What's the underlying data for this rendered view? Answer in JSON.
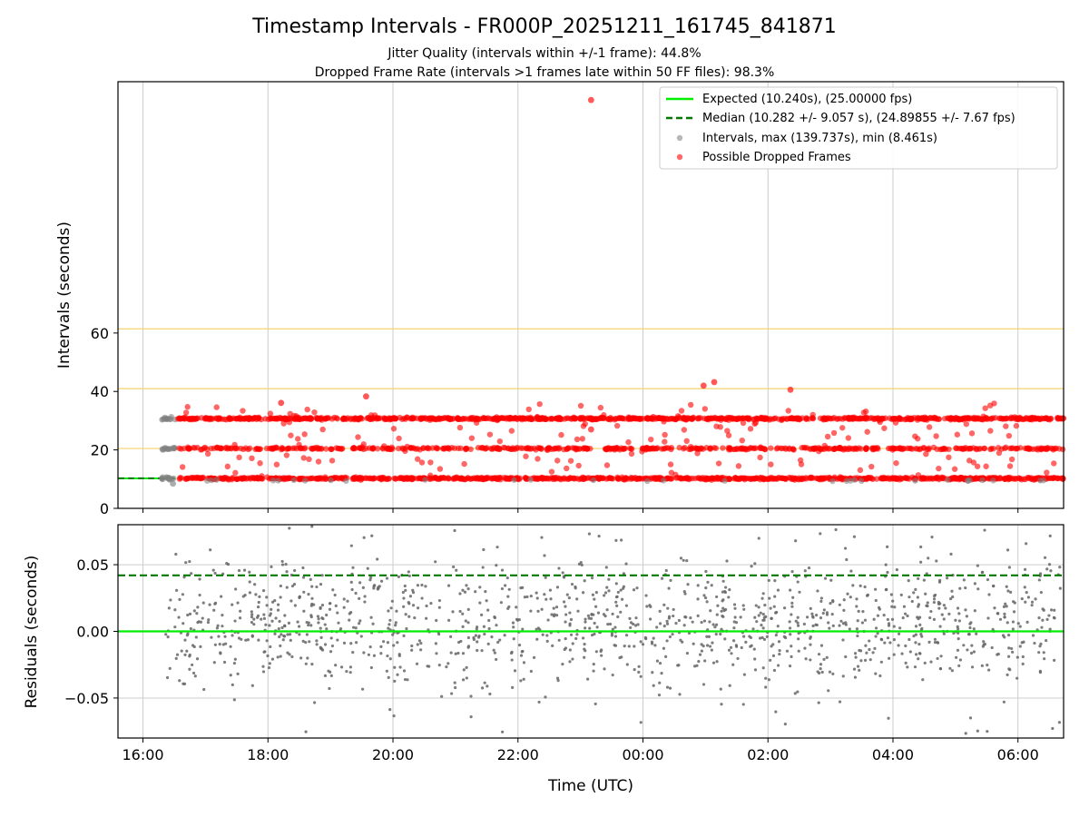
{
  "chart_data": {
    "type": "scatter",
    "title": "Timestamp Intervals - FR000P_20251211_161745_841871",
    "subtitle1": "Jitter Quality (intervals within +/-1 frame): 44.8%",
    "subtitle2": "Dropped Frame Rate (intervals >1 frames late within 50 FF files): 98.3%",
    "xlabel": "Time (UTC)",
    "x_range_hours": [
      15.6,
      30.73
    ],
    "x_ticks": [
      {
        "label": "16:00",
        "value": 16
      },
      {
        "label": "18:00",
        "value": 18
      },
      {
        "label": "20:00",
        "value": 20
      },
      {
        "label": "22:00",
        "value": 22
      },
      {
        "label": "00:00",
        "value": 24
      },
      {
        "label": "02:00",
        "value": 26
      },
      {
        "label": "04:00",
        "value": 28
      },
      {
        "label": "06:00",
        "value": 30
      }
    ],
    "top_panel": {
      "ylabel": "Intervals (seconds)",
      "ylim": [
        0,
        146
      ],
      "y_ticks": [
        {
          "label": "0",
          "value": 0
        },
        {
          "label": "20",
          "value": 20
        },
        {
          "label": "40",
          "value": 40
        },
        {
          "label": "60",
          "value": 60
        }
      ],
      "threshold_lines": [
        20.48,
        40.96,
        61.44
      ],
      "expected_interval": 10.24,
      "median_interval": 10.282,
      "band_levels": [
        10.24,
        20.48,
        30.72
      ],
      "normal_interval_start": 15.6,
      "normal_interval_end": 16.52,
      "notable_points": [
        {
          "x": 23.17,
          "y": 139.737,
          "kind": "dropped"
        },
        {
          "x": 25.14,
          "y": 43.2,
          "kind": "dropped"
        },
        {
          "x": 24.97,
          "y": 42.0,
          "kind": "dropped"
        },
        {
          "x": 26.36,
          "y": 40.6,
          "kind": "dropped"
        },
        {
          "x": 19.57,
          "y": 38.3,
          "kind": "dropped"
        },
        {
          "x": 18.21,
          "y": 36.1,
          "kind": "dropped"
        },
        {
          "x": 23.17,
          "y": 27.0,
          "kind": "dropped"
        },
        {
          "x": 16.48,
          "y": 8.461,
          "kind": "normal"
        }
      ]
    },
    "bottom_panel": {
      "ylabel": "Residuals (seconds)",
      "ylim": [
        -0.08,
        0.08
      ],
      "y_ticks": [
        {
          "label": "0.05",
          "value": 0.05
        },
        {
          "label": "0.00",
          "value": 0.0
        },
        {
          "label": "−0.05",
          "value": -0.05
        }
      ],
      "expected_residual": 0.0,
      "median_residual": 0.042
    },
    "legend": {
      "position": "top-right",
      "entries": [
        {
          "label": "Expected (10.240s), (25.00000 fps)",
          "style": "solid-line",
          "color": "#00ee00"
        },
        {
          "label": "Median (10.282 +/- 9.057 s), (24.89855 +/- 7.67 fps)",
          "style": "dashed-line",
          "color": "#007700"
        },
        {
          "label": "Intervals, max (139.737s), min (8.461s)",
          "style": "marker",
          "color": "#999999"
        },
        {
          "label": "Possible Dropped Frames",
          "style": "marker",
          "color": "#ff2a2a"
        }
      ]
    },
    "colors": {
      "expected": "#00ee00",
      "median": "#007700",
      "intervals": "#808080",
      "dropped": "#ff0000",
      "threshold": "#f5d26b",
      "grid": "#cccccc"
    }
  }
}
